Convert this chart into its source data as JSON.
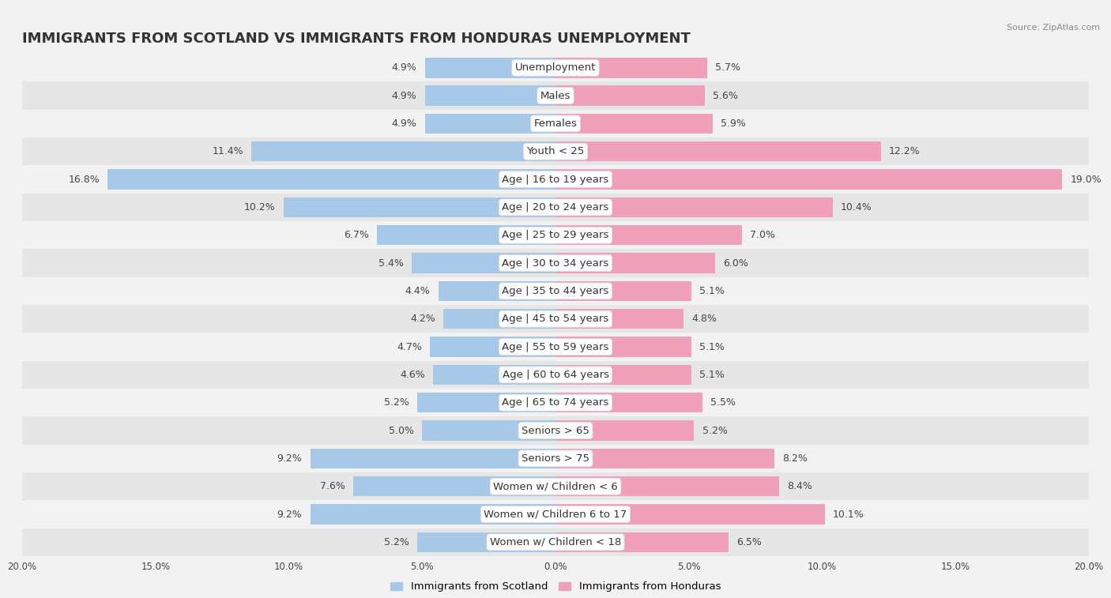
{
  "title": "IMMIGRANTS FROM SCOTLAND VS IMMIGRANTS FROM HONDURAS UNEMPLOYMENT",
  "source": "Source: ZipAtlas.com",
  "categories": [
    "Unemployment",
    "Males",
    "Females",
    "Youth < 25",
    "Age | 16 to 19 years",
    "Age | 20 to 24 years",
    "Age | 25 to 29 years",
    "Age | 30 to 34 years",
    "Age | 35 to 44 years",
    "Age | 45 to 54 years",
    "Age | 55 to 59 years",
    "Age | 60 to 64 years",
    "Age | 65 to 74 years",
    "Seniors > 65",
    "Seniors > 75",
    "Women w/ Children < 6",
    "Women w/ Children 6 to 17",
    "Women w/ Children < 18"
  ],
  "scotland_values": [
    4.9,
    4.9,
    4.9,
    11.4,
    16.8,
    10.2,
    6.7,
    5.4,
    4.4,
    4.2,
    4.7,
    4.6,
    5.2,
    5.0,
    9.2,
    7.6,
    9.2,
    5.2
  ],
  "honduras_values": [
    5.7,
    5.6,
    5.9,
    12.2,
    19.0,
    10.4,
    7.0,
    6.0,
    5.1,
    4.8,
    5.1,
    5.1,
    5.5,
    5.2,
    8.2,
    8.4,
    10.1,
    6.5
  ],
  "scotland_color": "#a8c8e8",
  "honduras_color": "#f0a0b8",
  "scotland_label": "Immigrants from Scotland",
  "honduras_label": "Immigrants from Honduras",
  "background_color": "#f2f2f2",
  "row_light_color": "#f2f2f2",
  "row_dark_color": "#e6e6e6",
  "axis_limit": 20.0,
  "title_fontsize": 13,
  "label_fontsize": 9.5,
  "value_fontsize": 9
}
